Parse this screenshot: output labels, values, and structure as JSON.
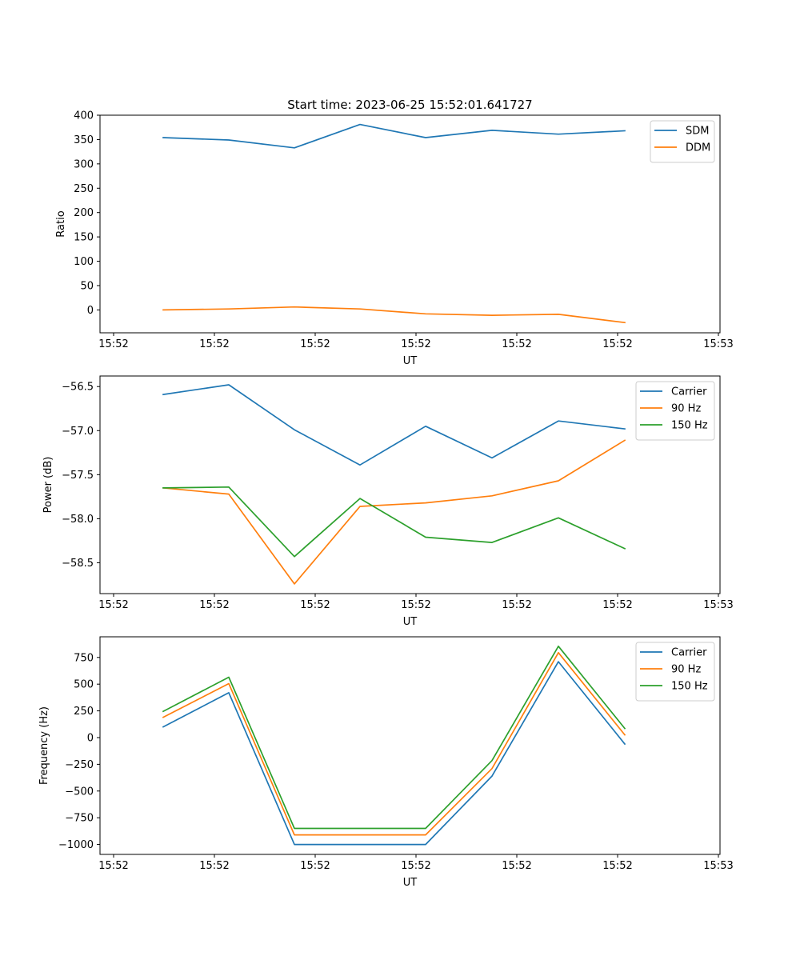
{
  "chart_data": {
    "title": "Start time: 2023-06-25 15:52:01.641727",
    "type": "line",
    "panels": [
      {
        "type": "line",
        "xlabel": "UT",
        "ylabel": "Ratio",
        "x_tick_labels": [
          "15:52",
          "15:52",
          "15:52",
          "15:52",
          "15:52",
          "15:52",
          "15:52",
          "15:53"
        ],
        "y_ticks": [
          0,
          50,
          100,
          150,
          200,
          250,
          300,
          350,
          400
        ],
        "ylim": [
          -47,
          400
        ],
        "legend_position": "top-right",
        "series": [
          {
            "name": "SDM",
            "color": "#1f77b4",
            "values": [
              354,
              349,
              333,
              381,
              354,
              369,
              361,
              368
            ]
          },
          {
            "name": "DDM",
            "color": "#ff7f0e",
            "values": [
              0,
              2,
              6,
              2,
              -8,
              -11,
              -9,
              -26
            ]
          }
        ]
      },
      {
        "type": "line",
        "xlabel": "UT",
        "ylabel": "Power (dB)",
        "x_tick_labels": [
          "15:52",
          "15:52",
          "15:52",
          "15:52",
          "15:52",
          "15:52",
          "15:52",
          "15:53"
        ],
        "y_ticks": [
          -56.5,
          -57.0,
          -57.5,
          -58.0,
          -58.5
        ],
        "y_tick_labels": [
          "−56.5",
          "−57.0",
          "−57.5",
          "−58.0",
          "−58.5"
        ],
        "ylim": [
          -58.85,
          -56.38
        ],
        "legend_position": "top-right",
        "series": [
          {
            "name": "Carrier",
            "color": "#1f77b4",
            "values": [
              -56.59,
              -56.48,
              -56.99,
              -57.39,
              -56.95,
              -57.31,
              -56.89,
              -56.98
            ]
          },
          {
            "name": "90 Hz",
            "color": "#ff7f0e",
            "values": [
              -57.65,
              -57.72,
              -58.74,
              -57.86,
              -57.82,
              -57.74,
              -57.57,
              -57.11
            ]
          },
          {
            "name": "150 Hz",
            "color": "#2ca02c",
            "values": [
              -57.65,
              -57.64,
              -58.43,
              -57.77,
              -58.21,
              -58.27,
              -57.99,
              -58.34
            ]
          }
        ]
      },
      {
        "type": "line",
        "xlabel": "UT",
        "ylabel": "Frequency (Hz)",
        "x_tick_labels": [
          "15:52",
          "15:52",
          "15:52",
          "15:52",
          "15:52",
          "15:52",
          "15:52",
          "15:53"
        ],
        "y_ticks": [
          750,
          500,
          250,
          0,
          -250,
          -500,
          -750,
          -1000
        ],
        "y_tick_labels": [
          "750",
          "500",
          "250",
          "0",
          "−250",
          "−500",
          "−750",
          "−1000"
        ],
        "ylim": [
          -1093,
          943
        ],
        "legend_position": "top-right",
        "series": [
          {
            "name": "Carrier",
            "color": "#1f77b4",
            "values": [
              100,
              420,
              -1000,
              -1000,
              -1000,
              -360,
              710,
              -60
            ]
          },
          {
            "name": "90 Hz",
            "color": "#ff7f0e",
            "values": [
              190,
              505,
              -910,
              -910,
              -910,
              -290,
              795,
              25
            ]
          },
          {
            "name": "150 Hz",
            "color": "#2ca02c",
            "values": [
              245,
              565,
              -850,
              -850,
              -850,
              -215,
              855,
              85
            ]
          }
        ]
      }
    ]
  }
}
